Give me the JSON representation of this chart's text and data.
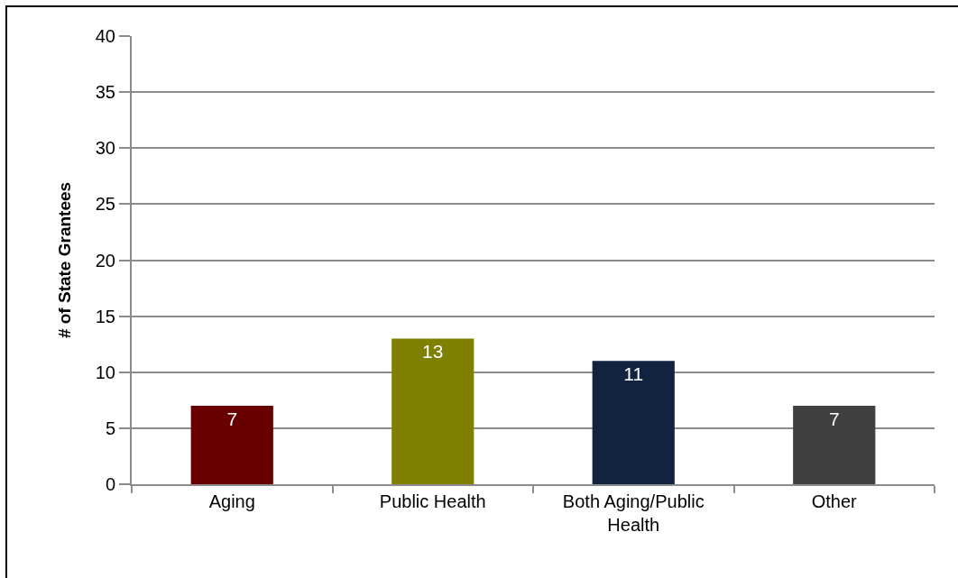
{
  "chart_data": {
    "type": "bar",
    "ylabel": "# of State Grantees",
    "categories": [
      "Aging",
      "Public Health",
      "Both Aging/Public Health",
      "Other"
    ],
    "values": [
      7,
      13,
      11,
      7
    ],
    "colors": [
      "#680000",
      "#7f7f00",
      "#12233f",
      "#404040"
    ],
    "ylim": [
      0,
      40
    ],
    "yticks": [
      0,
      5,
      10,
      15,
      20,
      25,
      30,
      35,
      40
    ],
    "grid": "y",
    "data_labels": true
  }
}
